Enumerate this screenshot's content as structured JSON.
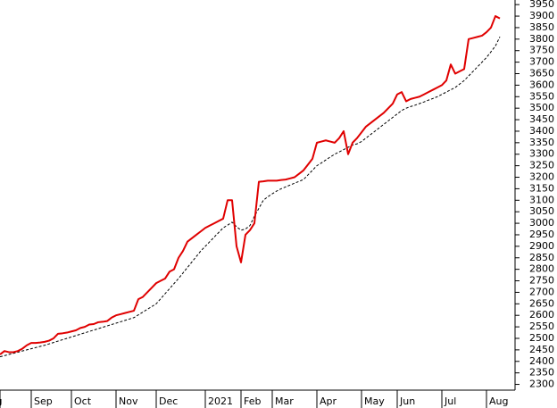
{
  "chart_data": {
    "type": "line",
    "categories": [
      "Aug",
      null,
      null,
      null,
      null,
      null,
      null,
      "Sep",
      null,
      null,
      null,
      null,
      null,
      null,
      null,
      null,
      "Oct",
      null,
      null,
      null,
      null,
      null,
      null,
      null,
      null,
      null,
      "Nov",
      null,
      null,
      null,
      null,
      null,
      null,
      null,
      null,
      "Dec",
      null,
      null,
      null,
      null,
      null,
      null,
      null,
      null,
      null,
      null,
      "2021",
      null,
      null,
      null,
      null,
      null,
      null,
      null,
      "Feb",
      null,
      null,
      null,
      null,
      null,
      null,
      "Mar",
      null,
      null,
      null,
      null,
      null,
      null,
      null,
      null,
      null,
      "Apr",
      null,
      null,
      null,
      null,
      null,
      null,
      null,
      null,
      null,
      "May",
      null,
      null,
      null,
      null,
      null,
      null,
      null,
      "Jun",
      null,
      null,
      null,
      null,
      null,
      null,
      null,
      null,
      null,
      "Jul",
      null,
      null,
      null,
      null,
      null,
      null,
      null,
      null,
      null,
      "Aug",
      null,
      null,
      null
    ],
    "series": [
      {
        "color": "#e00000",
        "dash": false,
        "values": [
          2430,
          2445,
          2440,
          2440,
          2445,
          2455,
          2470,
          2480,
          2480,
          2482,
          2485,
          2490,
          2500,
          2520,
          2522,
          2525,
          2530,
          2535,
          2545,
          2550,
          2560,
          2562,
          2570,
          2572,
          2575,
          2590,
          2600,
          2605,
          2610,
          2615,
          2620,
          2670,
          2680,
          2700,
          2720,
          2740,
          2750,
          2760,
          2790,
          2800,
          2850,
          2880,
          2920,
          2935,
          2950,
          2965,
          2980,
          2990,
          3000,
          3010,
          3020,
          3100,
          3100,
          2900,
          2830,
          2950,
          2970,
          3000,
          3180,
          3182,
          3185,
          3185,
          3185,
          3188,
          3190,
          3195,
          3200,
          3215,
          3230,
          3255,
          3280,
          3350,
          3355,
          3360,
          3355,
          3350,
          3370,
          3400,
          3300,
          3350,
          3370,
          3395,
          3420,
          3435,
          3450,
          3465,
          3480,
          3500,
          3520,
          3560,
          3570,
          3530,
          3540,
          3545,
          3550,
          3560,
          3570,
          3580,
          3590,
          3600,
          3620,
          3690,
          3650,
          3660,
          3670,
          3800,
          3805,
          3810,
          3815,
          3830,
          3850,
          3900,
          3890
        ]
      },
      {
        "color": "#000000",
        "dash": true,
        "values": [
          2420,
          2425,
          2430,
          2435,
          2440,
          2445,
          2450,
          2455,
          2460,
          2465,
          2470,
          2476,
          2482,
          2488,
          2494,
          2500,
          2506,
          2512,
          2518,
          2524,
          2530,
          2536,
          2542,
          2548,
          2554,
          2560,
          2566,
          2572,
          2578,
          2584,
          2590,
          2602,
          2614,
          2626,
          2638,
          2650,
          2672,
          2694,
          2716,
          2738,
          2760,
          2784,
          2808,
          2832,
          2856,
          2880,
          2900,
          2920,
          2940,
          2960,
          2980,
          2992,
          3005,
          2985,
          2970,
          2975,
          2990,
          3030,
          3065,
          3100,
          3115,
          3128,
          3140,
          3150,
          3158,
          3166,
          3174,
          3182,
          3190,
          3210,
          3230,
          3250,
          3262,
          3275,
          3288,
          3300,
          3310,
          3320,
          3330,
          3340,
          3345,
          3355,
          3370,
          3385,
          3400,
          3415,
          3430,
          3445,
          3460,
          3475,
          3490,
          3500,
          3507,
          3513,
          3520,
          3527,
          3535,
          3542,
          3550,
          3560,
          3570,
          3580,
          3590,
          3605,
          3620,
          3640,
          3660,
          3680,
          3700,
          3720,
          3745,
          3770,
          3810
        ]
      }
    ],
    "ylim": [
      2275,
      3970
    ],
    "yticks": [
      2300,
      2350,
      2400,
      2450,
      2500,
      2550,
      2600,
      2650,
      2700,
      2750,
      2800,
      2850,
      2900,
      2950,
      3000,
      3050,
      3100,
      3150,
      3200,
      3250,
      3300,
      3350,
      3400,
      3450,
      3500,
      3550,
      3600,
      3650,
      3700,
      3750,
      3800,
      3850,
      3900,
      3950
    ]
  }
}
